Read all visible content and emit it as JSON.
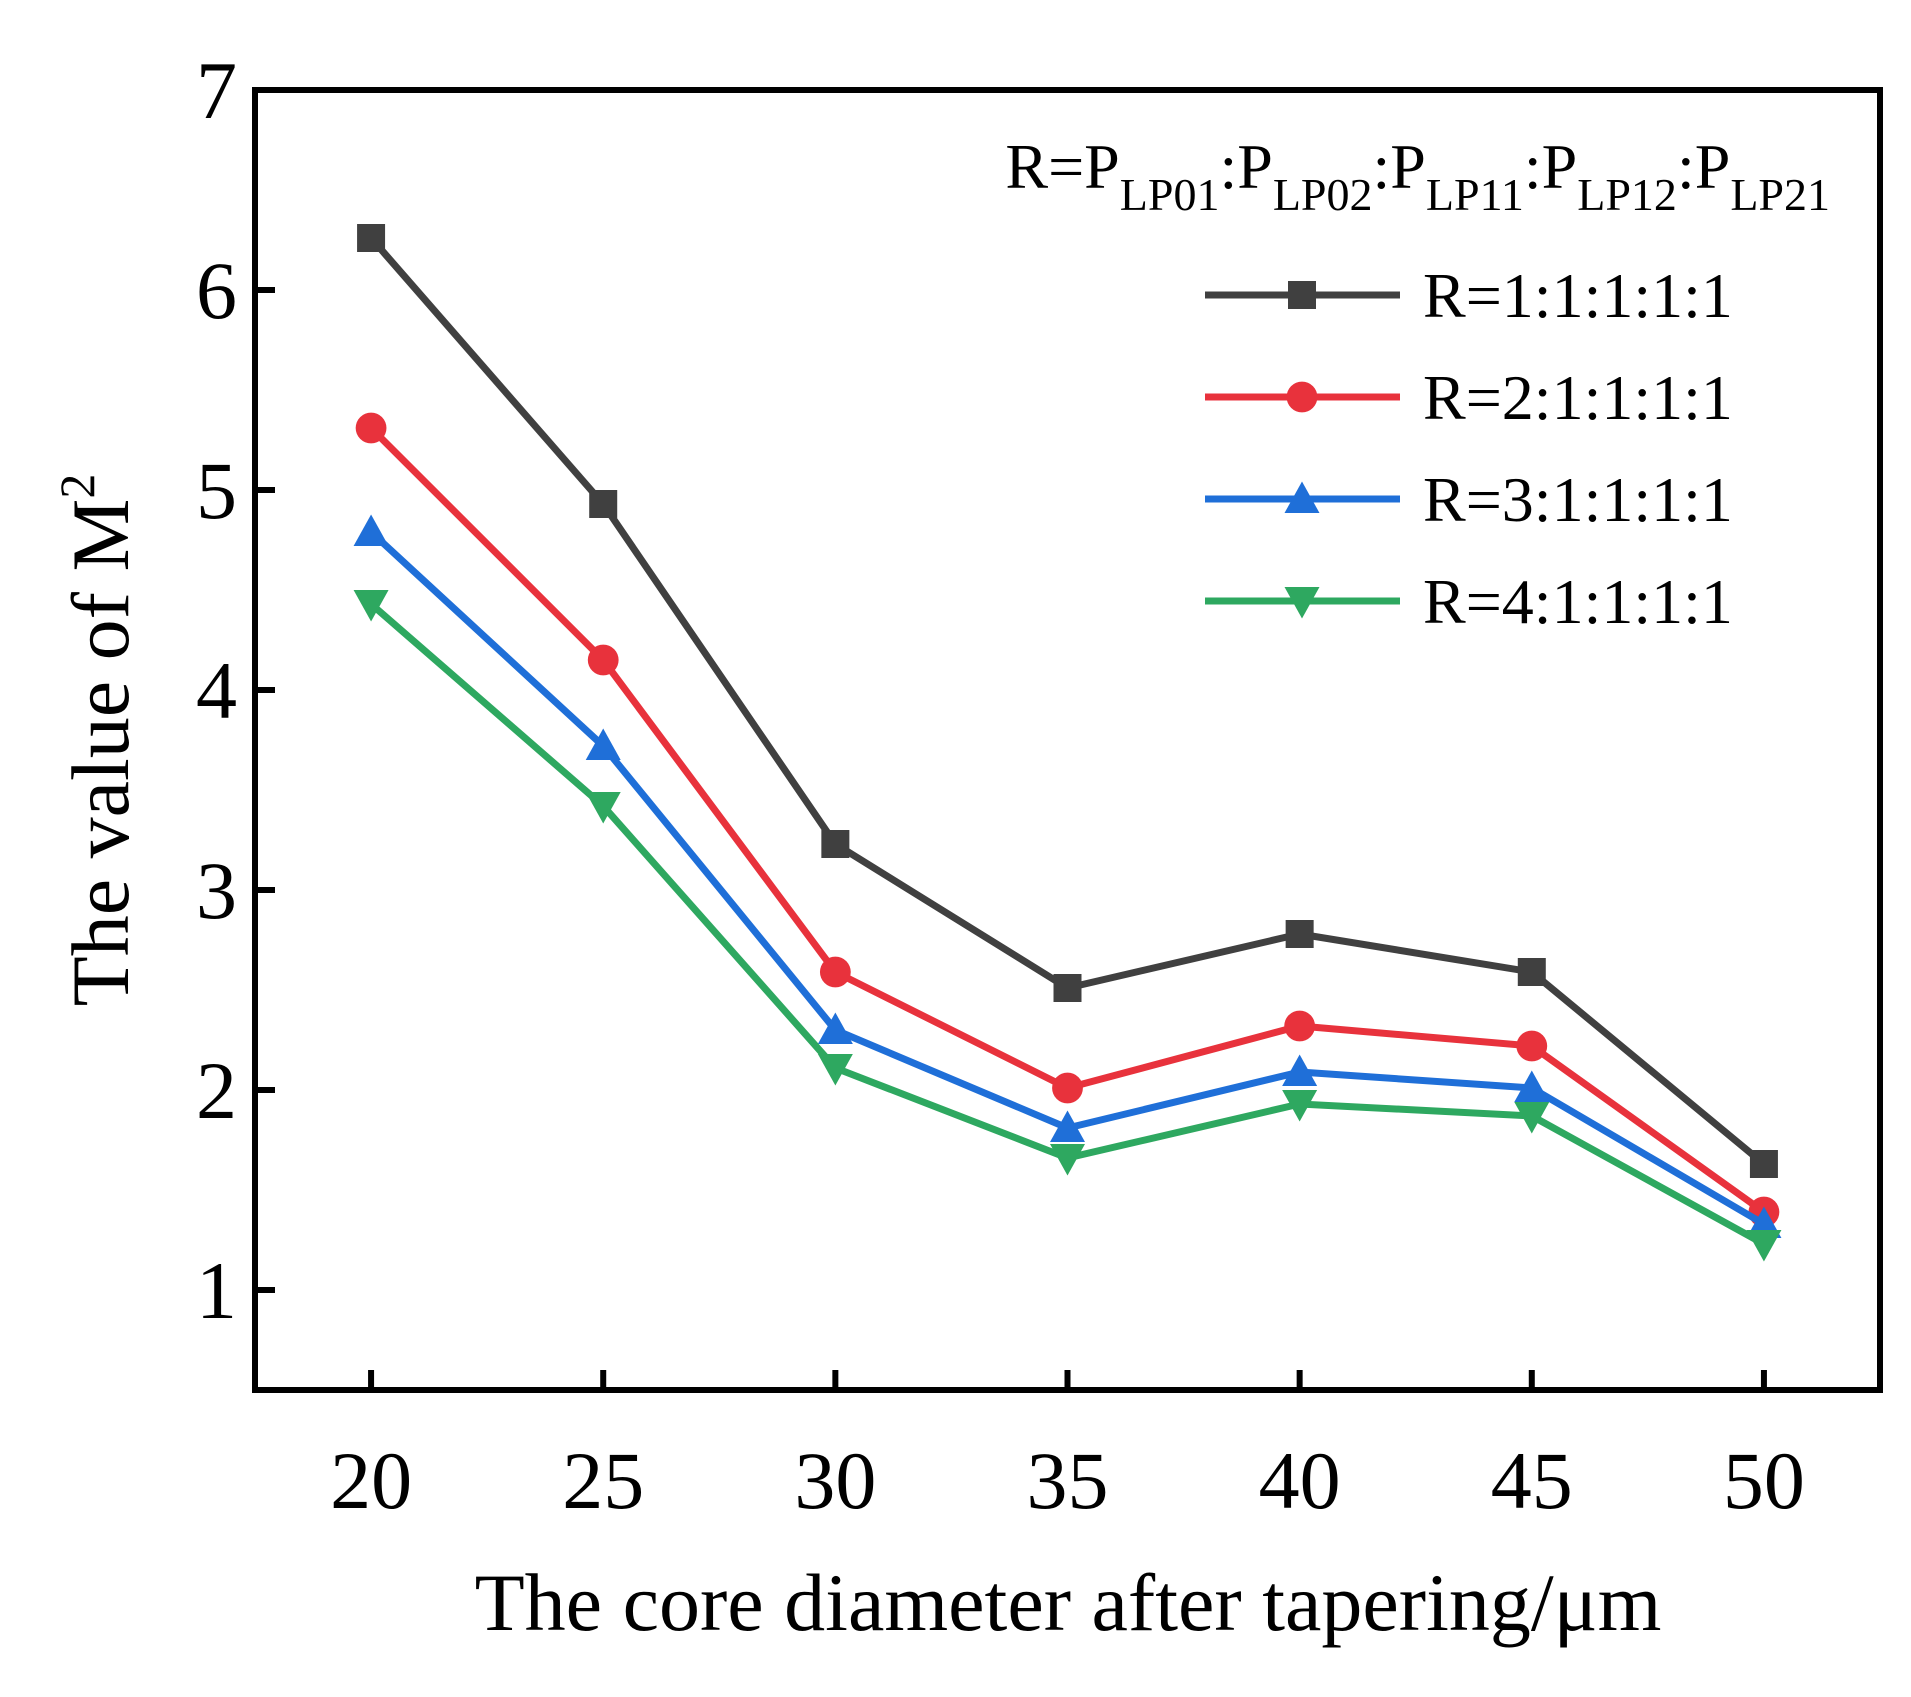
{
  "chart_data": {
    "type": "line",
    "x": [
      20,
      25,
      30,
      35,
      40,
      45,
      50
    ],
    "xlabel": "The core diameter after tapering/μm",
    "ylabel": {
      "base": "The value of M",
      "sup": "2"
    },
    "xlim": [
      17.5,
      52.5
    ],
    "ylim": [
      0.5,
      7
    ],
    "yticks": [
      1,
      2,
      3,
      4,
      5,
      6,
      7
    ],
    "xticks": [
      20,
      25,
      30,
      35,
      40,
      45,
      50
    ],
    "legend_position": "top-right",
    "legend_title": {
      "prefix": "R=",
      "parts": [
        {
          "p": "P",
          "sub": "LP01"
        },
        {
          "p": "P",
          "sub": "LP02"
        },
        {
          "p": "P",
          "sub": "LP11"
        },
        {
          "p": "P",
          "sub": "LP12"
        },
        {
          "p": "P",
          "sub": "LP21"
        }
      ],
      "separator": ":"
    },
    "series": [
      {
        "name": "R=1:1:1:1:1",
        "color": "#404040",
        "marker": "square",
        "values": [
          6.26,
          4.93,
          3.23,
          2.51,
          2.78,
          2.59,
          1.63
        ]
      },
      {
        "name": "R=2:1:1:1:1",
        "color": "#e8323c",
        "marker": "circle",
        "values": [
          5.31,
          4.15,
          2.59,
          2.01,
          2.32,
          2.22,
          1.39
        ]
      },
      {
        "name": "R=3:1:1:1:1",
        "color": "#1f6fd8",
        "marker": "triangle-up",
        "values": [
          4.79,
          3.72,
          2.3,
          1.81,
          2.09,
          2.01,
          1.33
        ]
      },
      {
        "name": "R=4:1:1:1:1",
        "color": "#2ea860",
        "marker": "triangle-down",
        "values": [
          4.43,
          3.42,
          2.11,
          1.66,
          1.93,
          1.87,
          1.23
        ]
      }
    ]
  }
}
